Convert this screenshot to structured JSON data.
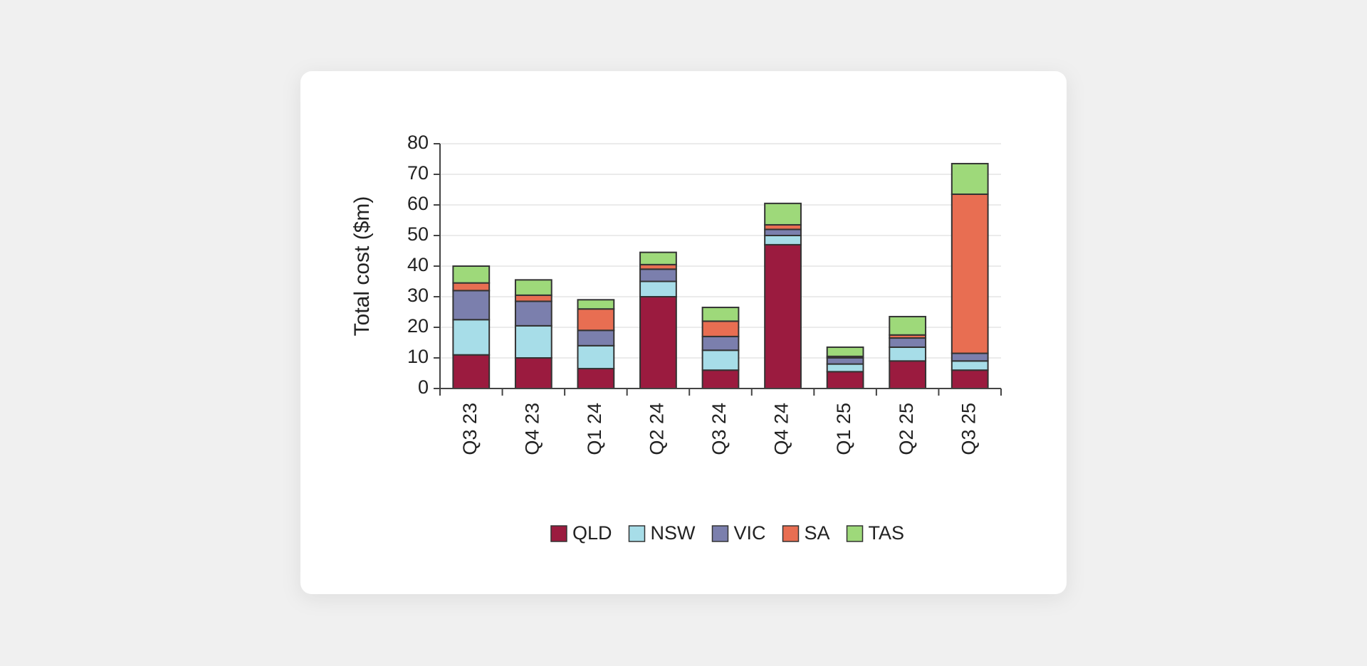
{
  "chart_data": {
    "type": "stacked_bar",
    "y_axis_label": "Total cost ($m)",
    "categories": [
      "Q3 23",
      "Q4 23",
      "Q1 24",
      "Q2 24",
      "Q3 24",
      "Q4 24",
      "Q1 25",
      "Q2 25",
      "Q3 25"
    ],
    "series": [
      {
        "name": "QLD",
        "color": "#9b1b3f",
        "values": [
          11,
          10,
          6.5,
          30,
          6,
          47,
          5.5,
          9,
          6
        ]
      },
      {
        "name": "NSW",
        "color": "#a7dde8",
        "values": [
          11.5,
          10.5,
          7.5,
          5,
          6.5,
          3,
          2.5,
          4.5,
          3
        ]
      },
      {
        "name": "VIC",
        "color": "#7b7fad",
        "values": [
          9.5,
          8,
          5,
          4,
          4.5,
          2,
          2,
          3,
          2.5
        ]
      },
      {
        "name": "SA",
        "color": "#e86e52",
        "values": [
          2.5,
          2,
          7,
          1.5,
          5,
          1.5,
          0.5,
          1,
          52
        ]
      },
      {
        "name": "TAS",
        "color": "#9ed97a",
        "values": [
          5.5,
          5,
          3,
          4,
          4.5,
          7,
          3,
          6,
          10
        ]
      }
    ],
    "ylim": [
      0,
      80
    ],
    "yticks": [
      0,
      10,
      20,
      30,
      40,
      50,
      60,
      70,
      80
    ],
    "grid": true,
    "legend": "bottom"
  }
}
